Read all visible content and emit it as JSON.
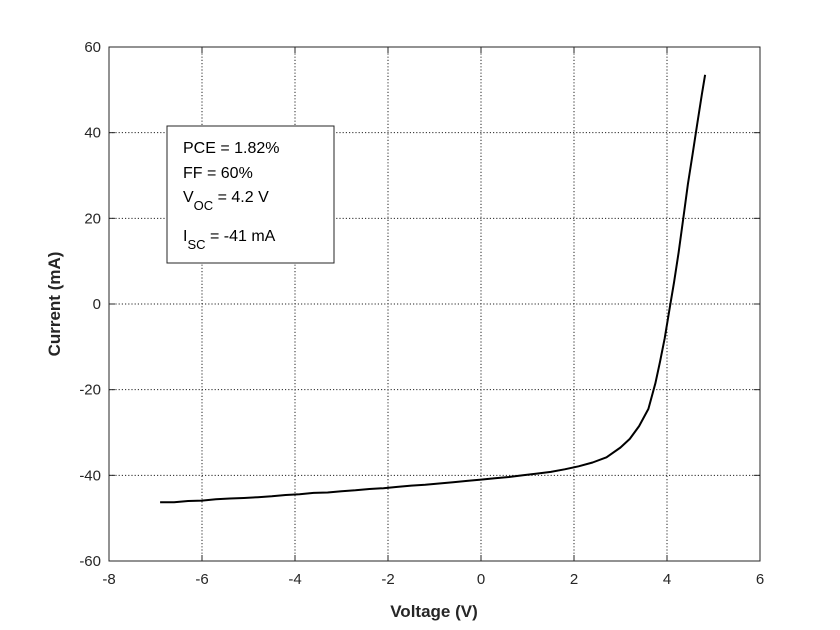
{
  "chart_data": {
    "type": "line",
    "title": "",
    "xlabel": "Voltage (V)",
    "ylabel": "Current (mA)",
    "xlim": [
      -8,
      6
    ],
    "ylim": [
      -60,
      60
    ],
    "xticks": [
      -8,
      -6,
      -4,
      -2,
      0,
      2,
      4,
      6
    ],
    "yticks": [
      -60,
      -40,
      -20,
      0,
      20,
      40,
      60
    ],
    "grid": true,
    "box": true,
    "series": [
      {
        "color": "#000000",
        "x": [
          -6.9,
          -6.6,
          -6.3,
          -6.0,
          -5.7,
          -5.4,
          -5.1,
          -4.8,
          -4.5,
          -4.2,
          -3.9,
          -3.6,
          -3.3,
          -3.0,
          -2.7,
          -2.4,
          -2.1,
          -1.8,
          -1.5,
          -1.2,
          -0.9,
          -0.6,
          -0.3,
          0.0,
          0.3,
          0.6,
          0.9,
          1.2,
          1.5,
          1.8,
          2.1,
          2.4,
          2.7,
          3.0,
          3.2,
          3.4,
          3.6,
          3.75,
          3.85,
          3.95,
          4.05,
          4.15,
          4.25,
          4.35,
          4.45,
          4.55,
          4.65,
          4.75,
          4.82
        ],
        "y": [
          -46.3,
          -46.3,
          -46.0,
          -45.9,
          -45.6,
          -45.4,
          -45.3,
          -45.1,
          -44.9,
          -44.6,
          -44.4,
          -44.1,
          -44.0,
          -43.7,
          -43.5,
          -43.2,
          -43.0,
          -42.7,
          -42.4,
          -42.2,
          -41.9,
          -41.6,
          -41.3,
          -41.0,
          -40.7,
          -40.4,
          -40.0,
          -39.6,
          -39.2,
          -38.6,
          -37.9,
          -37.0,
          -35.8,
          -33.5,
          -31.5,
          -28.5,
          -24.5,
          -18.5,
          -13.5,
          -8.0,
          -1.5,
          5.0,
          12.0,
          20.0,
          28.0,
          35.0,
          42.0,
          49.0,
          53.5
        ]
      }
    ],
    "annotation": {
      "lines": [
        {
          "main": "PCE",
          "sub": "",
          "value": " = 1.82%"
        },
        {
          "main": "FF",
          "sub": "",
          "value": "   = 60%"
        },
        {
          "main": "V",
          "sub": "OC",
          "value": " = 4.2 V"
        },
        {
          "main": "I",
          "sub": "SC",
          "value": "   = -41 mA"
        }
      ]
    }
  }
}
